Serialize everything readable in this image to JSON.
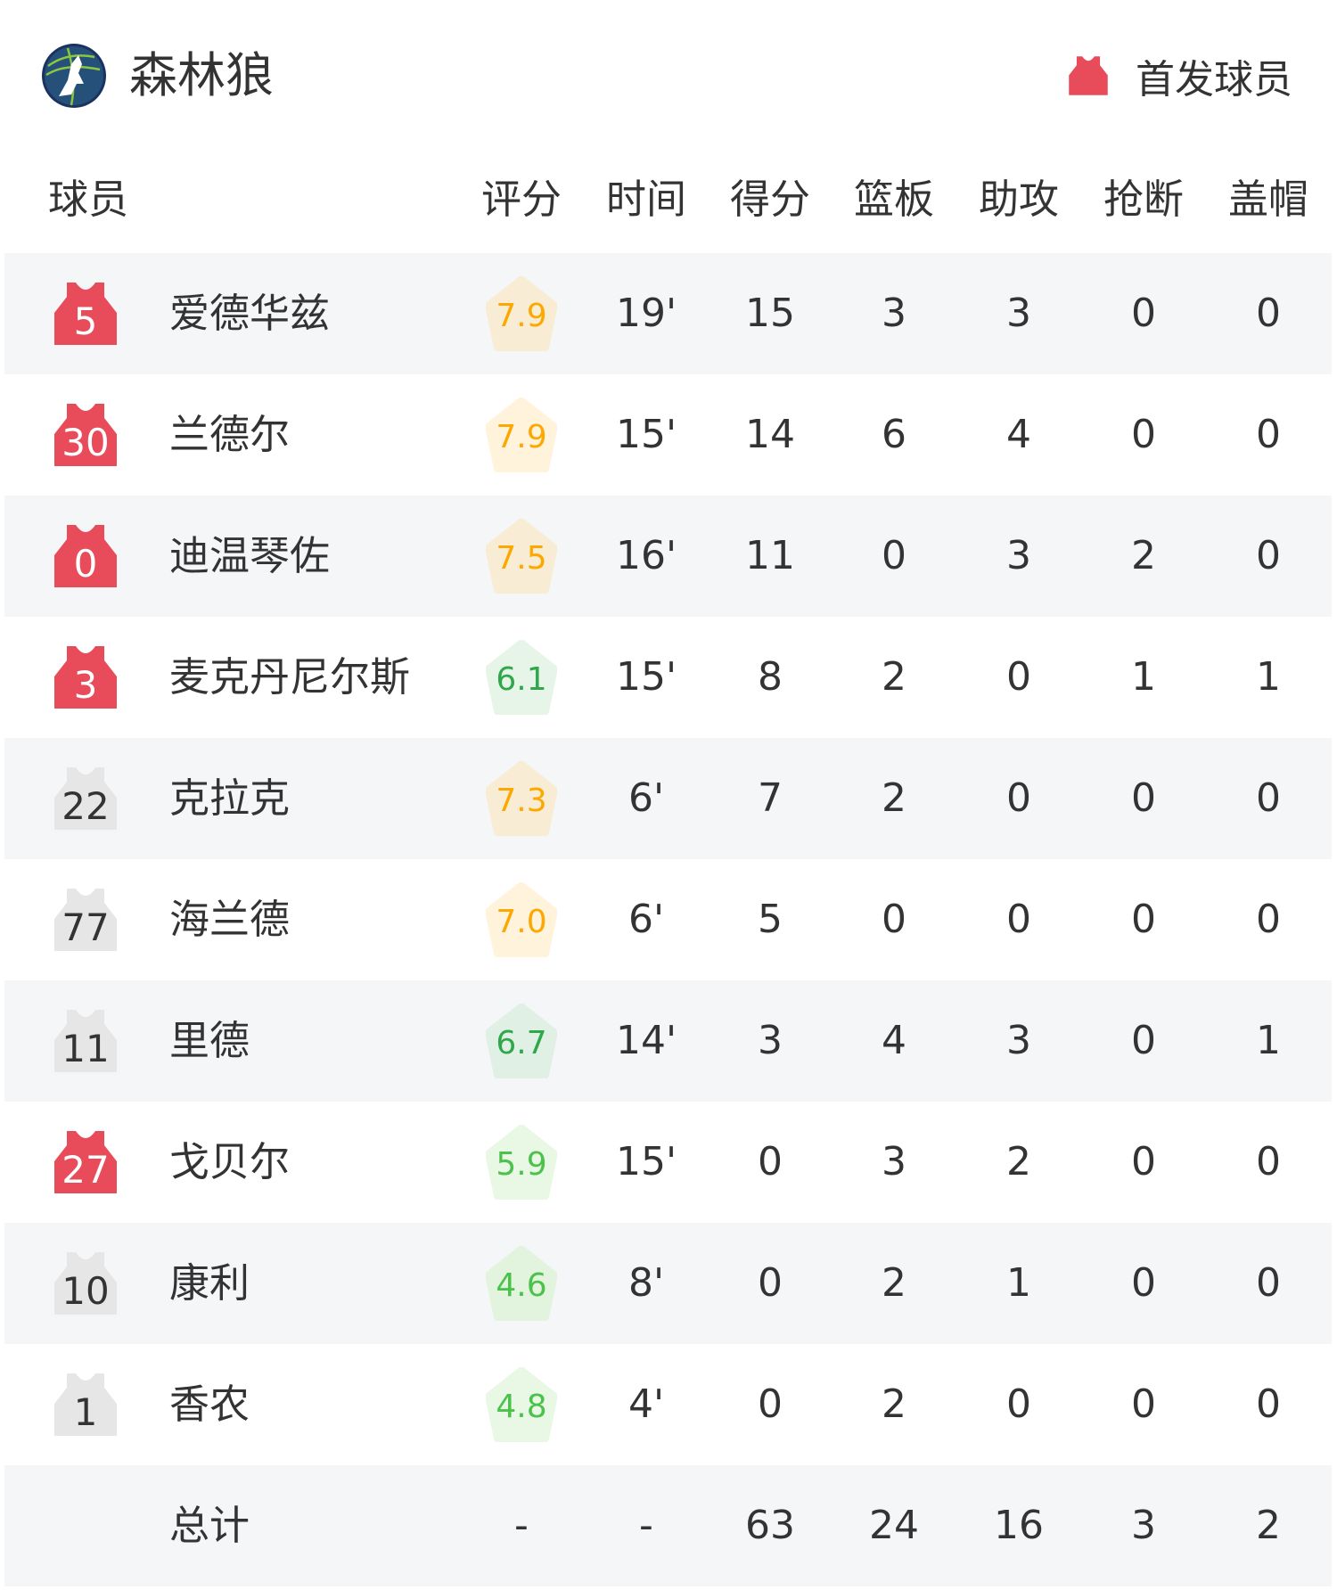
{
  "header": {
    "team_name": "森林狼",
    "logo_icon": "timberwolves-logo",
    "legend_label": "首发球员",
    "legend_icon": "jersey-icon"
  },
  "colors": {
    "starter": "#e84c5a",
    "bench": "#e6e6e6",
    "row_alt": "#f5f6f8"
  },
  "columns": [
    "球员",
    "评分",
    "时间",
    "得分",
    "篮板",
    "助攻",
    "抢断",
    "盖帽"
  ],
  "players": [
    {
      "number": "5",
      "name": "爱德华兹",
      "starter": true,
      "rating": "7.9",
      "rating_color": "#fca800",
      "rating_bg": "#f8ecd4",
      "time": "19'",
      "pts": "15",
      "reb": "3",
      "ast": "3",
      "stl": "0",
      "blk": "0"
    },
    {
      "number": "30",
      "name": "兰德尔",
      "starter": true,
      "rating": "7.9",
      "rating_color": "#fca800",
      "rating_bg": "#fff3dc",
      "time": "15'",
      "pts": "14",
      "reb": "6",
      "ast": "4",
      "stl": "0",
      "blk": "0"
    },
    {
      "number": "0",
      "name": "迪温琴佐",
      "starter": true,
      "rating": "7.5",
      "rating_color": "#fca800",
      "rating_bg": "#f8ecd4",
      "time": "16'",
      "pts": "11",
      "reb": "0",
      "ast": "3",
      "stl": "2",
      "blk": "0"
    },
    {
      "number": "3",
      "name": "麦克丹尼尔斯",
      "starter": true,
      "rating": "6.1",
      "rating_color": "#2ea84a",
      "rating_bg": "#e6f5e8",
      "time": "15'",
      "pts": "8",
      "reb": "2",
      "ast": "0",
      "stl": "1",
      "blk": "1"
    },
    {
      "number": "22",
      "name": "克拉克",
      "starter": false,
      "rating": "7.3",
      "rating_color": "#fca800",
      "rating_bg": "#f8ecd4",
      "time": "6'",
      "pts": "7",
      "reb": "2",
      "ast": "0",
      "stl": "0",
      "blk": "0"
    },
    {
      "number": "77",
      "name": "海兰德",
      "starter": false,
      "rating": "7.0",
      "rating_color": "#fca800",
      "rating_bg": "#fff3dc",
      "time": "6'",
      "pts": "5",
      "reb": "0",
      "ast": "0",
      "stl": "0",
      "blk": "0"
    },
    {
      "number": "11",
      "name": "里德",
      "starter": false,
      "rating": "6.7",
      "rating_color": "#2ea84a",
      "rating_bg": "#e0f0e4",
      "time": "14'",
      "pts": "3",
      "reb": "4",
      "ast": "3",
      "stl": "0",
      "blk": "1"
    },
    {
      "number": "27",
      "name": "戈贝尔",
      "starter": true,
      "rating": "5.9",
      "rating_color": "#4cc24c",
      "rating_bg": "#e8f8e4",
      "time": "15'",
      "pts": "0",
      "reb": "3",
      "ast": "2",
      "stl": "0",
      "blk": "0"
    },
    {
      "number": "10",
      "name": "康利",
      "starter": false,
      "rating": "4.6",
      "rating_color": "#4cc24c",
      "rating_bg": "#e2f3de",
      "time": "8'",
      "pts": "0",
      "reb": "2",
      "ast": "1",
      "stl": "0",
      "blk": "0"
    },
    {
      "number": "1",
      "name": "香农",
      "starter": false,
      "rating": "4.8",
      "rating_color": "#4cc24c",
      "rating_bg": "#e8f8e4",
      "time": "4'",
      "pts": "0",
      "reb": "2",
      "ast": "0",
      "stl": "0",
      "blk": "0"
    }
  ],
  "total": {
    "label": "总计",
    "rating": "-",
    "time": "-",
    "pts": "63",
    "reb": "24",
    "ast": "16",
    "stl": "3",
    "blk": "2"
  }
}
